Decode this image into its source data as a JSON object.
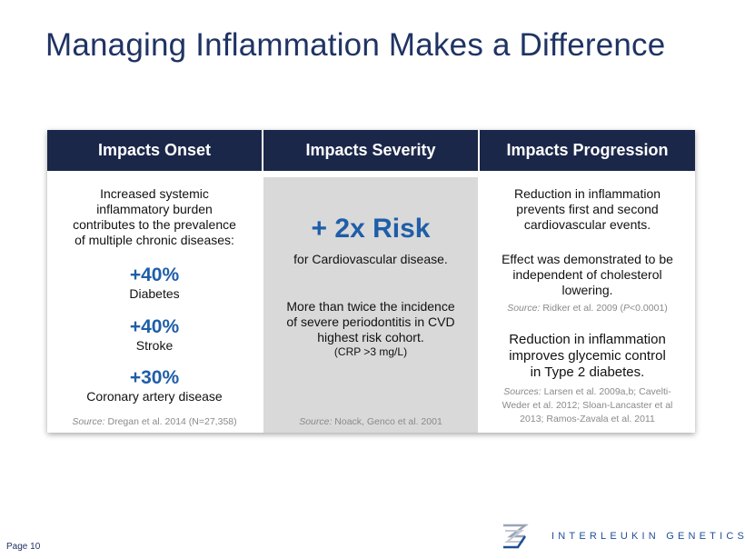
{
  "title": "Managing Inflammation Makes a Difference",
  "headers": [
    "Impacts Onset",
    "Impacts Severity",
    "Impacts Progression"
  ],
  "onset": {
    "intro": [
      "Increased systemic",
      "inflammatory burden",
      "contributes to the prevalence",
      "of multiple chronic diseases:"
    ],
    "stats": [
      {
        "value": "+40%",
        "label": "Diabetes"
      },
      {
        "value": "+40%",
        "label": "Stroke"
      },
      {
        "value": "+30%",
        "label": "Coronary artery disease"
      }
    ],
    "source_label": "Source:",
    "source_text": "Dregan et al. 2014 (N=27,358)"
  },
  "severity": {
    "headline": "+ 2x Risk",
    "subline": "for Cardiovascular disease.",
    "detail": [
      "More than twice the incidence",
      "of severe periodontitis in CVD",
      "highest risk cohort."
    ],
    "note": "(CRP >3 mg/L)",
    "source_label": "Source:",
    "source_text": "Noack, Genco et al. 2001"
  },
  "progression": {
    "para1": [
      "Reduction in inflammation",
      "prevents first and second",
      "cardiovascular events."
    ],
    "para2": [
      "Effect was demonstrated to be",
      "independent of cholesterol",
      "lowering."
    ],
    "source1_label": "Source:",
    "source1_pre": "Ridker et al. 2009 (",
    "source1_p": "P",
    "source1_post": "<0.0001)",
    "para3": [
      "Reduction in inflammation",
      "improves glycemic control",
      "in Type 2 diabetes."
    ],
    "source2_label": "Sources:",
    "source2_lines": [
      "Larsen et al. 2009a,b; Cavelti-",
      "Weder et al. 2012; Sloan-Lancaster et al",
      "2013; Ramos-Zavala et al. 2011"
    ]
  },
  "footer": {
    "page_label": "Page",
    "page_number": "10",
    "brand": "INTERLEUKIN GENETICS"
  }
}
